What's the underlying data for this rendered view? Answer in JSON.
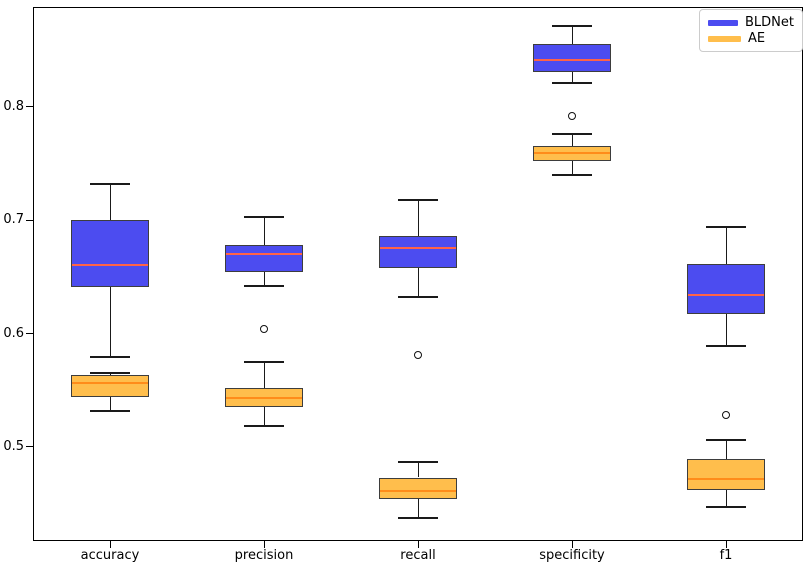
{
  "chart_data": {
    "type": "boxplot",
    "title": "",
    "xlabel": "",
    "ylabel": "",
    "categories": [
      "accuracy",
      "precision",
      "recall",
      "specificity",
      "f1"
    ],
    "yticks": [
      0.5,
      0.6,
      0.7,
      0.8
    ],
    "ylim": [
      0.417,
      0.888
    ],
    "grid": false,
    "legend_position": "upper right",
    "colors": {
      "bldnet_fill": "#4c4cf0",
      "bldnet_median": "#ff6347",
      "ae_fill": "#ffbe4c",
      "ae_median": "#ff8c1a",
      "box_edge": "#3d3d3d",
      "whisker": "#1a1a1a"
    },
    "series": [
      {
        "name": "BLDNet",
        "fill": "#4c4cf0",
        "median_color": "#ff6347",
        "boxes": [
          {
            "category": "accuracy",
            "whislo": 0.579,
            "q1": 0.641,
            "med": 0.66,
            "q3": 0.7,
            "whishi": 0.732,
            "fliers": []
          },
          {
            "category": "precision",
            "whislo": 0.642,
            "q1": 0.654,
            "med": 0.67,
            "q3": 0.678,
            "whishi": 0.703,
            "fliers": []
          },
          {
            "category": "recall",
            "whislo": 0.632,
            "q1": 0.658,
            "med": 0.675,
            "q3": 0.686,
            "whishi": 0.718,
            "fliers": []
          },
          {
            "category": "specificity",
            "whislo": 0.821,
            "q1": 0.831,
            "med": 0.841,
            "q3": 0.855,
            "whishi": 0.871,
            "fliers": []
          },
          {
            "category": "f1",
            "whislo": 0.589,
            "q1": 0.617,
            "med": 0.634,
            "q3": 0.661,
            "whishi": 0.694,
            "fliers": []
          }
        ]
      },
      {
        "name": "AE",
        "fill": "#ffbe4c",
        "median_color": "#ff8c1a",
        "boxes": [
          {
            "category": "accuracy",
            "whislo": 0.532,
            "q1": 0.544,
            "med": 0.556,
            "q3": 0.563,
            "whishi": 0.565,
            "fliers": []
          },
          {
            "category": "precision",
            "whislo": 0.518,
            "q1": 0.535,
            "med": 0.543,
            "q3": 0.552,
            "whishi": 0.575,
            "fliers": [
              0.604
            ]
          },
          {
            "category": "recall",
            "whislo": 0.437,
            "q1": 0.454,
            "med": 0.461,
            "q3": 0.473,
            "whishi": 0.487,
            "fliers": [
              0.581
            ]
          },
          {
            "category": "specificity",
            "whislo": 0.74,
            "q1": 0.752,
            "med": 0.759,
            "q3": 0.765,
            "whishi": 0.776,
            "fliers": [
              0.792
            ]
          },
          {
            "category": "f1",
            "whislo": 0.447,
            "q1": 0.462,
            "med": 0.472,
            "q3": 0.489,
            "whishi": 0.506,
            "fliers": [
              0.528
            ]
          }
        ]
      }
    ]
  }
}
